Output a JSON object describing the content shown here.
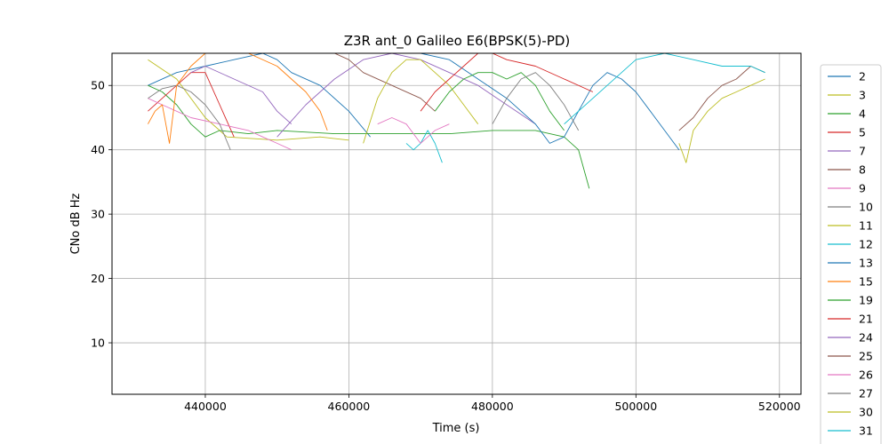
{
  "chart_data": {
    "type": "line",
    "title": "Z3R ant_0 Galileo E6(BPSK(5)-PD)",
    "xlabel": "Time (s)",
    "ylabel": "CNo dB Hz",
    "xlim": [
      427000,
      523000
    ],
    "ylim": [
      2,
      55
    ],
    "xticks": [
      440000,
      460000,
      480000,
      500000,
      520000
    ],
    "xtick_labels": [
      "440000",
      "460000",
      "480000",
      "500000",
      "520000"
    ],
    "yticks": [
      10,
      20,
      30,
      40,
      50
    ],
    "ytick_labels": [
      "10",
      "20",
      "30",
      "40",
      "50"
    ],
    "grid": true,
    "legend_position": "right outside",
    "series": [
      {
        "name": "2",
        "color": "#1f77b4",
        "x": [
          432000,
          436000,
          440000,
          444000,
          448000,
          450000,
          452000,
          456000,
          460000,
          463000
        ],
        "y": [
          50,
          52,
          53,
          54,
          55,
          54,
          52,
          50,
          46,
          42
        ]
      },
      {
        "name": "3",
        "color": "#bcbd22",
        "x": [
          432000,
          436000,
          440000,
          443000,
          450000,
          456000,
          460000
        ],
        "y": [
          54,
          51,
          45,
          42,
          41.5,
          42,
          41.5
        ]
      },
      {
        "name": "4",
        "color": "#2ca02c",
        "x": [
          432000,
          434000,
          436000,
          438000,
          440000,
          442000,
          446000,
          450000,
          458000,
          466000,
          474000,
          480000,
          486000,
          490000,
          492000,
          493500
        ],
        "y": [
          50,
          49,
          47,
          44,
          42,
          43,
          42.5,
          43,
          42.5,
          42.5,
          42.5,
          43,
          43,
          42,
          40,
          34
        ]
      },
      {
        "name": "5",
        "color": "#d62728",
        "x": [
          432000,
          434000,
          436000,
          438000,
          440000,
          442000,
          444000
        ],
        "y": [
          46,
          48,
          50,
          52,
          52,
          47,
          42
        ]
      },
      {
        "name": "7",
        "color": "#9467bd",
        "x": [
          450000,
          454000,
          458000,
          462000,
          466000,
          470000,
          474000,
          478000,
          482000,
          486000
        ],
        "y": [
          42,
          47,
          51,
          54,
          55,
          54,
          52,
          50,
          47,
          44
        ]
      },
      {
        "name": "8",
        "color": "#8c564b",
        "x": [
          458000,
          460000,
          462000,
          466000,
          470000,
          472000
        ],
        "y": [
          55,
          54,
          52,
          50,
          48,
          46
        ]
      },
      {
        "name": "9",
        "color": "#e377c2",
        "x": [
          432000,
          434000,
          438000,
          442000,
          446000,
          448000,
          450000,
          452000
        ],
        "y": [
          48,
          47,
          45,
          44,
          43,
          42,
          41,
          40
        ]
      },
      {
        "name": "10",
        "color": "#7f7f7f",
        "x": [
          432000,
          434000,
          436000,
          438000,
          440000,
          442000,
          443500
        ],
        "y": [
          48,
          49.5,
          50,
          49,
          47,
          44,
          40
        ]
      },
      {
        "name": "11",
        "color": "#bcbd22",
        "x": [
          462000,
          464000,
          466000,
          468000,
          470000,
          472000,
          474000,
          476000,
          478000
        ],
        "y": [
          41,
          48,
          52,
          54,
          54,
          52,
          50,
          47,
          44
        ]
      },
      {
        "name": "12",
        "color": "#17becf",
        "x": [
          468000,
          469000,
          470000,
          471000,
          472000,
          473000
        ],
        "y": [
          41,
          40,
          41,
          43,
          41,
          38
        ]
      },
      {
        "name": "13",
        "color": "#1f77b4",
        "x": [
          470000,
          474000,
          478000,
          482000,
          486000,
          488000,
          490000,
          492000,
          494000,
          496000,
          498000,
          500000,
          502000,
          504000,
          506000
        ],
        "y": [
          55,
          54,
          51,
          48,
          44,
          41,
          42,
          46,
          50,
          52,
          51,
          49,
          46,
          43,
          40
        ]
      },
      {
        "name": "15",
        "color": "#ff7f0e",
        "x": [
          432000,
          433000,
          434000,
          435000,
          436000,
          438000,
          440000,
          442000,
          446000,
          450000,
          452000,
          454000,
          456000,
          457000
        ],
        "y": [
          44,
          46,
          47,
          41,
          50,
          53,
          55,
          55,
          55,
          53,
          51,
          49,
          46,
          43
        ]
      },
      {
        "name": "19",
        "color": "#2ca02c",
        "x": [
          472000,
          474000,
          476000,
          478000,
          480000,
          482000,
          484000,
          486000,
          488000,
          490000
        ],
        "y": [
          46,
          49,
          51,
          52,
          52,
          51,
          52,
          50,
          46,
          43
        ]
      },
      {
        "name": "21",
        "color": "#d62728",
        "x": [
          470000,
          472000,
          474000,
          476000,
          478000,
          480000,
          482000,
          486000,
          490000,
          494000
        ],
        "y": [
          46,
          49,
          51,
          53,
          55,
          55,
          54,
          53,
          51,
          49
        ]
      },
      {
        "name": "24",
        "color": "#9467bd",
        "x": [
          438000,
          440000,
          444000,
          448000,
          450000,
          452000
        ],
        "y": [
          52,
          53,
          51,
          49,
          46,
          44
        ]
      },
      {
        "name": "25",
        "color": "#8c564b",
        "x": [
          506000,
          508000,
          510000,
          512000,
          514000,
          516000,
          518000
        ],
        "y": [
          43,
          45,
          48,
          50,
          51,
          53,
          52
        ]
      },
      {
        "name": "26",
        "color": "#e377c2",
        "x": [
          464000,
          466000,
          468000,
          470000,
          472000,
          474000
        ],
        "y": [
          44,
          45,
          44,
          41,
          43,
          44
        ]
      },
      {
        "name": "27",
        "color": "#7f7f7f",
        "x": [
          480000,
          482000,
          484000,
          486000,
          488000,
          490000,
          492000
        ],
        "y": [
          44,
          48,
          51,
          52,
          50,
          47,
          43
        ]
      },
      {
        "name": "30",
        "color": "#bcbd22",
        "x": [
          506000,
          507000,
          508000,
          510000,
          512000,
          514000,
          516000,
          518000
        ],
        "y": [
          41,
          38,
          43,
          46,
          48,
          49,
          50,
          51
        ]
      },
      {
        "name": "31",
        "color": "#17becf",
        "x": [
          490000,
          492000,
          494000,
          496000,
          498000,
          500000,
          504000,
          508000,
          512000,
          516000,
          518000
        ],
        "y": [
          44,
          46,
          48,
          50,
          52,
          54,
          55,
          54,
          53,
          53,
          52
        ]
      }
    ]
  }
}
